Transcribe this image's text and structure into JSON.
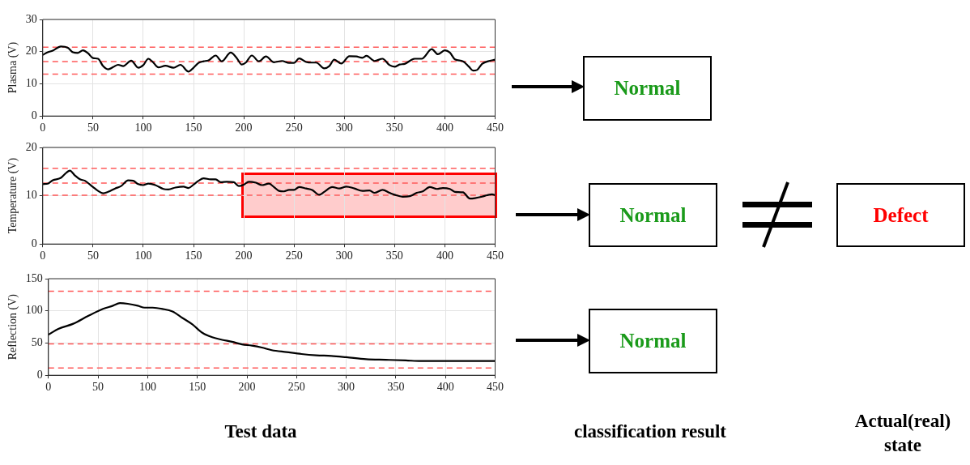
{
  "chart_data": [
    {
      "type": "line",
      "ylabel": "Plasma (V)",
      "xlim": [
        0,
        450
      ],
      "xticks": [
        0,
        50,
        100,
        150,
        200,
        250,
        300,
        350,
        400,
        450
      ],
      "ylim": [
        0,
        30
      ],
      "yticks": [
        0,
        10,
        20,
        30
      ],
      "grid": true,
      "legend": false,
      "marker": "none",
      "line_style": "solid",
      "x": [
        0,
        5,
        10,
        18,
        25,
        30,
        35,
        40,
        45,
        50,
        55,
        60,
        65,
        70,
        75,
        80,
        88,
        95,
        100,
        105,
        110,
        115,
        122,
        130,
        137,
        145,
        150,
        155,
        160,
        165,
        172,
        178,
        187,
        193,
        198,
        202,
        208,
        215,
        222,
        230,
        238,
        245,
        250,
        255,
        262,
        268,
        272,
        280,
        285,
        290,
        297,
        305,
        312,
        318,
        322,
        330,
        338,
        345,
        350,
        355,
        360,
        370,
        377,
        387,
        393,
        400,
        405,
        410,
        418,
        424,
        428,
        432,
        437,
        443,
        450
      ],
      "series": [
        {
          "color": "#000000",
          "values": [
            19,
            19.8,
            20.3,
            21.6,
            21.2,
            19.8,
            19.6,
            20.4,
            19.5,
            18,
            17.8,
            15.5,
            14.5,
            15.2,
            15.9,
            15.5,
            17.2,
            15,
            15.8,
            17.8,
            16.6,
            15.1,
            15.6,
            15,
            15.9,
            13.8,
            15,
            16.5,
            17,
            17.3,
            18.8,
            17,
            19.7,
            18,
            16,
            16.6,
            18.8,
            17,
            18.5,
            16.7,
            17.1,
            16.5,
            16.5,
            17.9,
            16.8,
            16.6,
            16.6,
            14.8,
            15.5,
            17.5,
            16.3,
            18.6,
            18.5,
            18.1,
            18.7,
            17.1,
            17.8,
            15.8,
            15.3,
            16,
            16.2,
            17.8,
            17.8,
            20.8,
            19.2,
            20.4,
            19.7,
            17.6,
            17,
            15.3,
            14.1,
            14.3,
            16.2,
            17,
            17.5
          ]
        }
      ],
      "ref_lines": [
        {
          "axis": "y",
          "value": 21.4,
          "color": "#ff5a5a",
          "line_style": "dashed"
        },
        {
          "axis": "y",
          "value": 16.9,
          "color": "#ff5a5a",
          "line_style": "dashed"
        },
        {
          "axis": "y",
          "value": 13,
          "color": "#ff5a5a",
          "line_style": "dashed"
        }
      ]
    },
    {
      "type": "line",
      "ylabel": "Temperature (V)",
      "xlim": [
        0,
        450
      ],
      "xticks": [
        0,
        50,
        100,
        150,
        200,
        250,
        300,
        350,
        400,
        450
      ],
      "ylim": [
        0,
        20
      ],
      "yticks": [
        0,
        10,
        20
      ],
      "grid": true,
      "legend": false,
      "marker": "none",
      "line_style": "solid",
      "x": [
        0,
        5,
        10,
        18,
        22,
        27,
        32,
        37,
        42,
        50,
        55,
        60,
        65,
        72,
        78,
        85,
        90,
        95,
        100,
        105,
        112,
        120,
        125,
        132,
        140,
        145,
        150,
        155,
        160,
        167,
        172,
        177,
        183,
        190,
        195,
        200,
        205,
        212,
        218,
        225,
        230,
        235,
        240,
        245,
        250,
        255,
        262,
        268,
        275,
        280,
        288,
        295,
        302,
        310,
        318,
        325,
        330,
        338,
        345,
        350,
        358,
        365,
        372,
        378,
        385,
        392,
        398,
        405,
        410,
        418,
        425,
        430,
        437,
        442,
        447,
        450
      ],
      "series": [
        {
          "color": "#000000",
          "values": [
            12.4,
            12.5,
            13.2,
            13.7,
            14.5,
            15.2,
            14.2,
            13.4,
            13.1,
            11.8,
            11,
            10.5,
            10.8,
            11.5,
            12,
            13.2,
            13.1,
            12.4,
            12.2,
            12.5,
            12.2,
            11.4,
            11.3,
            11.7,
            11.9,
            11.6,
            12.3,
            13.1,
            13.6,
            13.4,
            13.4,
            12.8,
            12.9,
            12.8,
            12,
            12.3,
            12.9,
            12.7,
            12.2,
            12.5,
            11.8,
            11,
            10.9,
            11.2,
            11.2,
            11.8,
            11.5,
            11.2,
            10.2,
            10.8,
            11.8,
            11.5,
            11.9,
            11.5,
            11,
            11.1,
            10.6,
            11.2,
            10.6,
            10.2,
            9.8,
            9.9,
            10.6,
            10.9,
            11.8,
            11.4,
            11.6,
            11.4,
            10.8,
            10.7,
            9.4,
            9.5,
            9.8,
            10.1,
            10.3,
            10.1
          ]
        }
      ],
      "ref_lines": [
        {
          "axis": "y",
          "value": 15.7,
          "color": "#ff5a5a",
          "line_style": "dashed"
        },
        {
          "axis": "y",
          "value": 12.6,
          "color": "#ff5a5a",
          "line_style": "dashed"
        },
        {
          "axis": "y",
          "value": 10.1,
          "color": "#ff5a5a",
          "line_style": "dashed"
        }
      ]
    },
    {
      "type": "line",
      "ylabel": "Reflection (V)",
      "xlim": [
        0,
        450
      ],
      "xticks": [
        0,
        50,
        100,
        150,
        200,
        250,
        300,
        350,
        400,
        450
      ],
      "ylim": [
        0,
        150
      ],
      "yticks": [
        0,
        50,
        100,
        150
      ],
      "grid": true,
      "legend": false,
      "marker": "none",
      "line_style": "solid",
      "x": [
        0,
        10,
        25,
        40,
        55,
        65,
        72,
        80,
        90,
        97,
        105,
        115,
        125,
        135,
        145,
        155,
        165,
        175,
        185,
        195,
        205,
        215,
        225,
        240,
        255,
        270,
        285,
        300,
        320,
        340,
        360,
        375,
        400,
        420,
        450
      ],
      "series": [
        {
          "color": "#000000",
          "values": [
            63,
            72,
            80,
            92,
            103,
            108,
            112,
            111,
            108,
            105,
            105,
            103,
            99,
            89,
            79,
            66,
            59,
            55,
            52,
            48,
            46,
            43,
            39,
            36,
            33,
            31,
            30,
            28,
            25,
            24,
            23,
            22,
            22,
            22,
            22
          ]
        }
      ],
      "ref_lines": [
        {
          "axis": "y",
          "value": 130.4,
          "color": "#ff5a5a",
          "line_style": "dashed"
        },
        {
          "axis": "y",
          "value": 48.6,
          "color": "#ff5a5a",
          "line_style": "dashed"
        },
        {
          "axis": "y",
          "value": 11.4,
          "color": "#ff5a5a",
          "line_style": "dashed"
        }
      ]
    },
    {
      "type": "other",
      "annotations": [
        "Normal",
        "Normal",
        "Normal",
        "Defect",
        "Test data",
        "classification result",
        "Actual(real) state"
      ]
    }
  ]
}
